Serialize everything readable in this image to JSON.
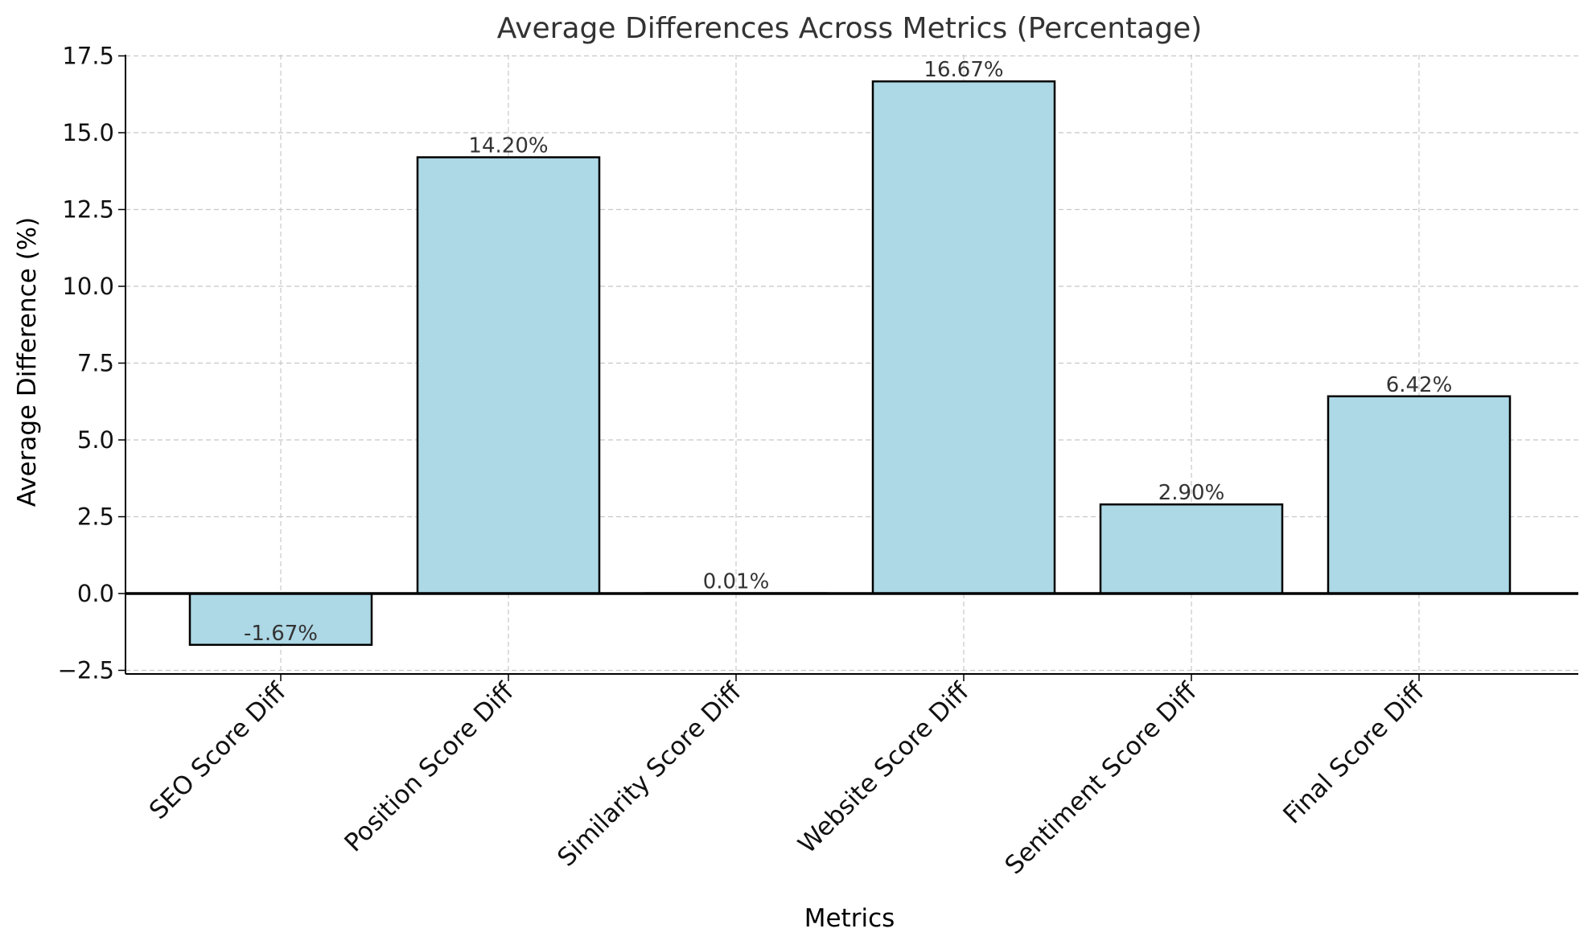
{
  "colors": {
    "bar_fill": "#add8e6",
    "bar_stroke": "#000000",
    "grid": "#c8c8c8",
    "axis": "#000000"
  },
  "chart_data": {
    "type": "bar",
    "title": "Average Differences Across Metrics (Percentage)",
    "xlabel": "Metrics",
    "ylabel": "Average Difference (%)",
    "categories": [
      "SEO Score Diff",
      "Position Score Diff",
      "Similarity Score Diff",
      "Website Score Diff",
      "Sentiment Score Diff",
      "Final Score Diff"
    ],
    "values": [
      -1.67,
      14.2,
      0.01,
      16.67,
      2.9,
      6.42
    ],
    "data_labels": [
      "-1.67%",
      "14.20%",
      "0.01%",
      "16.67%",
      "2.90%",
      "6.42%"
    ],
    "yticks": [
      -2.5,
      0,
      2.5,
      5,
      7.5,
      10,
      12.5,
      15,
      17.5
    ],
    "ytick_labels": [
      "−2.5",
      "0.0",
      "2.5",
      "5.0",
      "7.5",
      "10.0",
      "12.5",
      "15.0",
      "17.5"
    ],
    "ylim": [
      -2.6,
      17.7
    ],
    "grid": true,
    "grid_style": "dashed"
  }
}
